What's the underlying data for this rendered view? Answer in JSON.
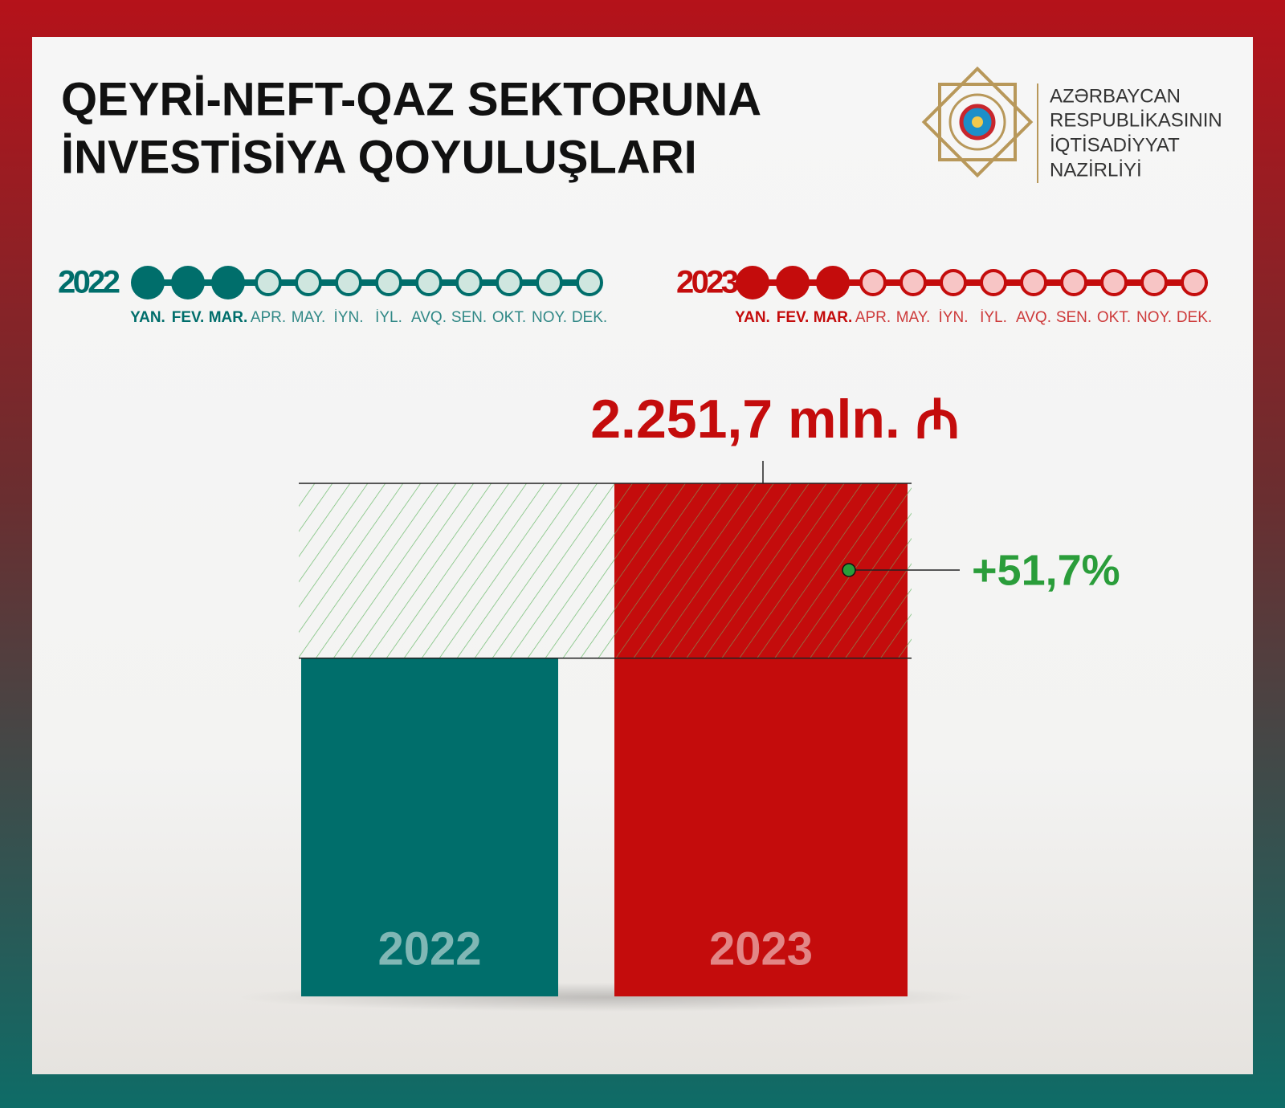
{
  "header": {
    "title_lines": [
      "QEYRİ-NEFT-QAZ SEKTORUNA",
      "İNVESTİSİYA QOYULUŞLARI"
    ],
    "logo_text": [
      "AZƏRBAYCAN",
      "RESPUBLİKASININ",
      "İQTİSADİYYAT",
      "NAZİRLİYİ"
    ]
  },
  "timelines": [
    {
      "year": "2022",
      "color": "#006e6b",
      "light": "#cfe6df",
      "months": [
        "YAN.",
        "FEV.",
        "MAR.",
        "APR.",
        "MAY.",
        "İYN.",
        "İYL.",
        "AVQ.",
        "SEN.",
        "OKT.",
        "NOY.",
        "DEK."
      ],
      "active": 3
    },
    {
      "year": "2023",
      "color": "#c40c0c",
      "light": "#f7c5c5",
      "months": [
        "YAN.",
        "FEV.",
        "MAR.",
        "APR.",
        "MAY.",
        "İYN.",
        "İYL.",
        "AVQ.",
        "SEN.",
        "OKT.",
        "NOY.",
        "DEK."
      ],
      "active": 3
    }
  ],
  "chart_data": {
    "type": "bar",
    "categories": [
      "2022",
      "2023"
    ],
    "values": [
      1484.3,
      2251.7
    ],
    "value_labels": [
      null,
      "2.251,7 mln. ₼"
    ],
    "colors": [
      "#006e6b",
      "#c40c0c"
    ],
    "ylim": [
      0,
      2500
    ],
    "annotation": "+51,7%",
    "annotation_color": "#2a9d3a"
  }
}
